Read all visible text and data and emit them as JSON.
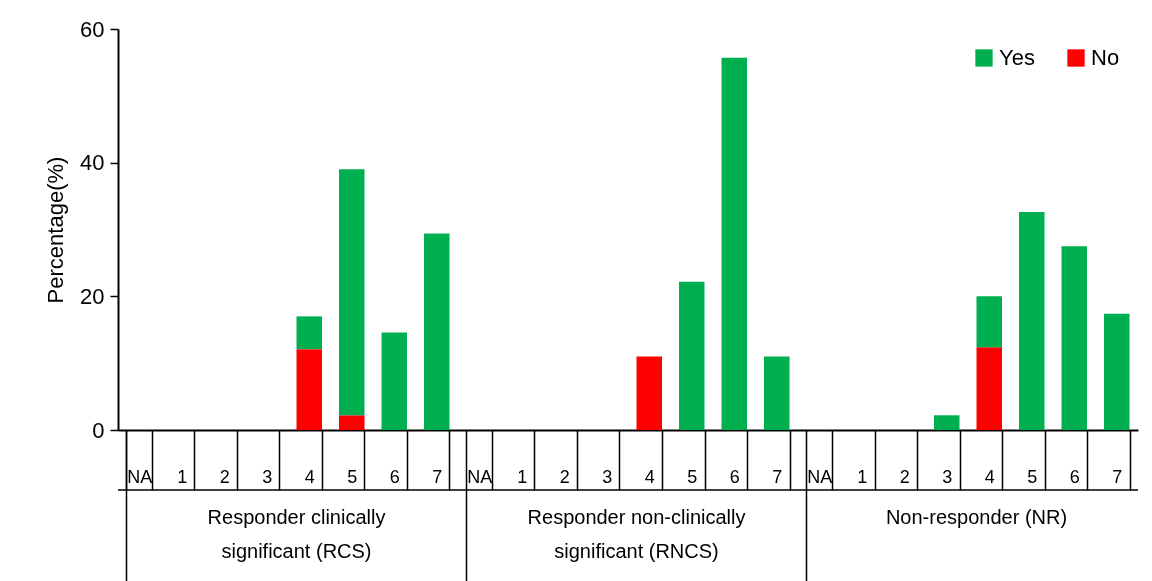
{
  "chart_data": {
    "type": "bar",
    "stacked": true,
    "ylabel": "Percentage(%)",
    "categories": [
      "NA",
      "1",
      "2",
      "3",
      "4",
      "5",
      "6",
      "7",
      "NA",
      "1",
      "2",
      "3",
      "4",
      "5",
      "6",
      "7",
      "NA",
      "1",
      "2",
      "3",
      "4",
      "5",
      "6",
      "7"
    ],
    "series": [
      {
        "name": "No",
        "color": "#ff0000",
        "values": [
          0,
          0,
          0,
          0,
          12.1,
          2.2,
          0,
          0,
          0,
          0,
          0,
          0,
          11.0,
          0,
          0,
          0,
          0,
          0,
          0,
          0,
          12.4,
          0,
          0,
          0
        ]
      },
      {
        "name": "Yes",
        "color": "#00b050",
        "values": [
          0,
          0,
          0,
          0,
          4.9,
          36.8,
          14.6,
          29.4,
          0,
          0,
          0,
          0,
          0,
          22.2,
          55.7,
          11.0,
          0,
          0,
          0,
          2.2,
          7.6,
          32.6,
          27.5,
          17.4
        ]
      }
    ],
    "annotations": [
      "Responder clinically significant (RCS)",
      "Responder non-clinically significant (RNCS)",
      "Non-responder (NR)"
    ],
    "ylim": [
      0,
      60
    ],
    "yticks": [
      0,
      20,
      40,
      60
    ],
    "grid": false,
    "legend": "top right"
  }
}
